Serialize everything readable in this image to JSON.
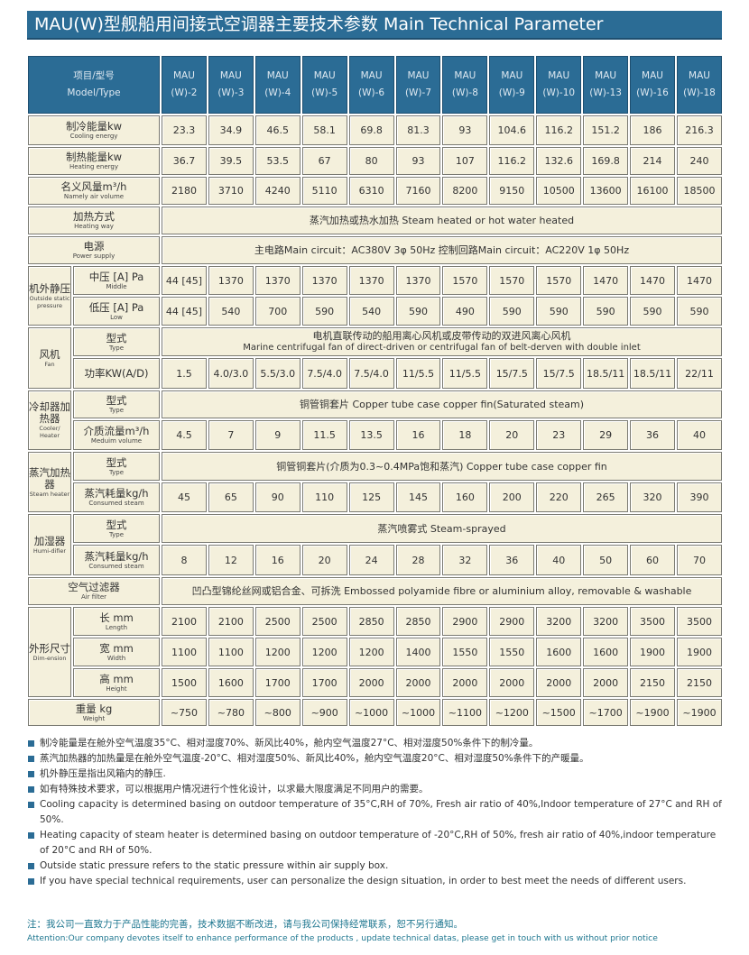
{
  "title": "MAU(W)型舰船用间接式空调器主要技术参数 Main Technical Parameter",
  "header": {
    "label_cn": "项目/型号",
    "label_en": "Model/Type",
    "models": [
      [
        "MAU",
        "(W)-2"
      ],
      [
        "MAU",
        "(W)-3"
      ],
      [
        "MAU",
        "(W)-4"
      ],
      [
        "MAU",
        "(W)-5"
      ],
      [
        "MAU",
        "(W)-6"
      ],
      [
        "MAU",
        "(W)-7"
      ],
      [
        "MAU",
        "(W)-8"
      ],
      [
        "MAU",
        "(W)-9"
      ],
      [
        "MAU",
        "(W)-10"
      ],
      [
        "MAU",
        "(W)-13"
      ],
      [
        "MAU",
        "(W)-16"
      ],
      [
        "MAU",
        "(W)-18"
      ]
    ]
  },
  "rows": [
    {
      "h": 33,
      "label": {
        "cn": "制冷能量kw",
        "en": "Cooling energy"
      },
      "values": [
        "23.3",
        "34.9",
        "46.5",
        "58.1",
        "69.8",
        "81.3",
        "93",
        "104.6",
        "116.2",
        "151.2",
        "186",
        "216.3"
      ]
    },
    {
      "h": 31,
      "label": {
        "cn": "制热能量kw",
        "en": "Heating energy"
      },
      "values": [
        "36.7",
        "39.5",
        "53.5",
        "67",
        "80",
        "93",
        "107",
        "116.2",
        "132.6",
        "169.8",
        "214",
        "240"
      ]
    },
    {
      "h": 31,
      "label": {
        "cn": "名义风量m³/h",
        "en": "Namely air volume"
      },
      "values": [
        "2180",
        "3710",
        "4240",
        "5110",
        "6310",
        "7160",
        "8200",
        "9150",
        "10500",
        "13600",
        "16100",
        "18500"
      ]
    },
    {
      "h": 31,
      "label": {
        "cn": "加热方式",
        "en": "Heating way"
      },
      "span": [
        "蒸汽加热或热水加热  Steam heated or hot water heated"
      ]
    },
    {
      "h": 31,
      "label": {
        "cn": "电源",
        "en": "Power supply"
      },
      "span": [
        "主电路Main circuit：AC380V 3φ 50Hz          控制回路Main circuit：AC220V 1φ 50Hz"
      ]
    },
    {
      "h": 32,
      "group": {
        "cn": "机外静压",
        "en": "Outside static pressure",
        "rows": 2
      },
      "label": {
        "cn": "中压 [A] Pa",
        "en": "Middle"
      },
      "values": [
        "44 [45]",
        "1370",
        "1370",
        "1370",
        "1370",
        "1370",
        "1570",
        "1570",
        "1570",
        "1470",
        "1470",
        "1470"
      ]
    },
    {
      "h": 32,
      "label": {
        "cn": "低压 [A] Pa",
        "en": "Low"
      },
      "values": [
        "44 [45]",
        "540",
        "700",
        "590",
        "540",
        "590",
        "490",
        "590",
        "590",
        "590",
        "590",
        "590"
      ]
    },
    {
      "h": 32,
      "group": {
        "cn": "风机",
        "en": "Fan",
        "rows": 2
      },
      "label": {
        "cn": "型式",
        "en": "Type"
      },
      "span": [
        "电机直联传动的船用离心风机或皮带传动的双进风离心风机",
        "Marine centrifugal fan of direct-driven or centrifugal fan of belt-derven with double inlet"
      ]
    },
    {
      "h": 34,
      "label": {
        "cn": "功率KW(A/D)",
        "en": ""
      },
      "values": [
        "1.5",
        "4.0/3.0",
        "5.5/3.0",
        "7.5/4.0",
        "7.5/4.0",
        "11/5.5",
        "11/5.5",
        "15/7.5",
        "15/7.5",
        "18.5/11",
        "18.5/11",
        "22/11"
      ]
    },
    {
      "h": 31,
      "group": {
        "cn": "冷却器加热器",
        "en": "Cooler/ Heater",
        "rows": 2
      },
      "label": {
        "cn": "型式",
        "en": "Type"
      },
      "span": [
        "铜管铜套片    Copper tube case copper fin(Saturated steam)"
      ]
    },
    {
      "h": 33,
      "label": {
        "cn": "介质流量m³/h",
        "en": "Meduim volume"
      },
      "values": [
        "4.5",
        "7",
        "9",
        "11.5",
        "13.5",
        "16",
        "18",
        "20",
        "23",
        "29",
        "36",
        "40"
      ]
    },
    {
      "h": 32,
      "group": {
        "cn": "蒸汽加热器",
        "en": "Steam heater",
        "rows": 2
      },
      "label": {
        "cn": "型式",
        "en": "Type"
      },
      "span": [
        "铜管铜套片(介质为0.3~0.4MPa饱和蒸汽)  Copper tube case copper fin"
      ]
    },
    {
      "h": 33,
      "label": {
        "cn": "蒸汽耗量kg/h",
        "en": "Consumed steam"
      },
      "values": [
        "45",
        "65",
        "90",
        "110",
        "125",
        "145",
        "160",
        "200",
        "220",
        "265",
        "320",
        "390"
      ]
    },
    {
      "h": 32,
      "group": {
        "cn": "加湿器",
        "en": "Humi-difier",
        "rows": 2
      },
      "label": {
        "cn": "型式",
        "en": "Type"
      },
      "span": [
        "蒸汽喷雾式  Steam-sprayed"
      ]
    },
    {
      "h": 34,
      "label": {
        "cn": "蒸汽耗量kg/h",
        "en": "Consumed steam"
      },
      "values": [
        "8",
        "12",
        "16",
        "20",
        "24",
        "28",
        "32",
        "36",
        "40",
        "50",
        "60",
        "70"
      ]
    },
    {
      "h": 31,
      "label": {
        "cn": "空气过滤器",
        "en": "Air filter"
      },
      "span": [
        "凹凸型锦纶丝网或铝合金、可拆洗 Embossed polyamide fibre or aluminium alloy, removable & washable"
      ]
    },
    {
      "h": 32,
      "group": {
        "cn": "外形尺寸",
        "en": "Dim-ension",
        "rows": 3
      },
      "label": {
        "cn": "长 mm",
        "en": "Length"
      },
      "values": [
        "2100",
        "2100",
        "2500",
        "2500",
        "2850",
        "2850",
        "2900",
        "2900",
        "3200",
        "3200",
        "3500",
        "3500"
      ]
    },
    {
      "h": 32,
      "label": {
        "cn": "宽 mm",
        "en": "Width"
      },
      "values": [
        "1100",
        "1100",
        "1200",
        "1200",
        "1200",
        "1400",
        "1550",
        "1550",
        "1600",
        "1600",
        "1900",
        "1900"
      ]
    },
    {
      "h": 32,
      "label": {
        "cn": "高 mm",
        "en": "Height"
      },
      "values": [
        "1500",
        "1600",
        "1700",
        "1700",
        "2000",
        "2000",
        "2000",
        "2000",
        "2000",
        "2000",
        "2150",
        "2150"
      ]
    },
    {
      "h": 30,
      "label": {
        "cn": "重量 kg",
        "en": "Weight"
      },
      "values": [
        "~750",
        "~780",
        "~800",
        "~900",
        "~1000",
        "~1000",
        "~1100",
        "~1200",
        "~1500",
        "~1700",
        "~1900",
        "~1900"
      ]
    }
  ],
  "notes": [
    "制冷能量是在舱外空气温度35°C、相对湿度70%、新风比40%，舱内空气温度27°C、相对湿度50%条件下的制冷量。",
    "蒸汽加热器的加热量是在舱外空气温度-20°C、相对湿度50%、新风比40%，舱内空气温度20°C、相对湿度50%条件下的产暖量。",
    "机外静压是指出风箱内的静压.",
    "如有特殊技术要求，可以根据用户情况进行个性化设计，以求最大限度满足不同用户的需要。",
    "Cooling capacity is determined basing on outdoor temperature of 35°C,RH of 70%, Fresh air ratio of 40%,Indoor temperature of 27°C and RH of 50%.",
    "Heating capacity of steam heater is determined basing on outdoor temperature of -20°C,RH of 50%, fresh air ratio of 40%,indoor temperature of 20°C and RH of 50%.",
    "Outside static pressure refers to the static pressure within air supply box.",
    "If you have special technical requirements, user can personalize the design situation, in order to best meet the needs of different users."
  ],
  "footer": {
    "cn": "注：我公司一直致力于产品性能的完善，技术数据不断改进，请与我公司保持经常联系，恕不另行通知。",
    "en": "Attention:Our company devotes itself to enhance performance of the products , update technical datas, please get in touch with us without prior notice"
  },
  "colors": {
    "accent": "#2b6c95",
    "cell": "#f4f0dc",
    "footer": "#1f7790"
  }
}
